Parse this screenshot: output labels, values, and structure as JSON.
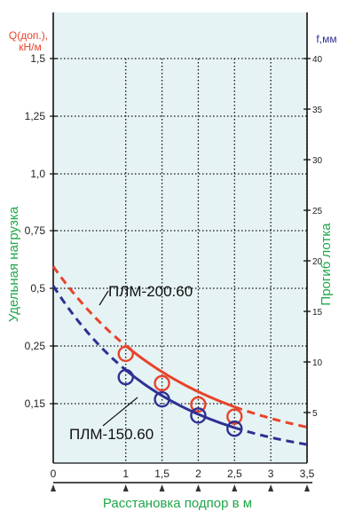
{
  "colors": {
    "plot_bg": "#e6f3f4",
    "red": "#e8432b",
    "blue": "#2d3192",
    "green": "#1fa74a",
    "axis": "#111111",
    "grid": "#111111"
  },
  "chart_data": {
    "type": "line",
    "xlabel": "Расстановка подпор в м",
    "ylabel_left": "Удельная нагрузка",
    "ylabel_right": "Прогиб лотка",
    "left_unit_line1": "Q(доп.),",
    "left_unit_line2": "кН/м",
    "right_unit": "f,мм",
    "x_ticks": [
      {
        "label": "0",
        "value": 0
      },
      {
        "label": "1",
        "value": 1
      },
      {
        "label": "1,5",
        "value": 1.5
      },
      {
        "label": "2",
        "value": 2
      },
      {
        "label": "2,5",
        "value": 2.5
      },
      {
        "label": "3",
        "value": 3
      },
      {
        "label": "3,5",
        "value": 3.5
      }
    ],
    "xlim": [
      0,
      3.5
    ],
    "left_axis": {
      "ticks": [
        {
          "label": "0,15",
          "value": 0.15
        },
        {
          "label": "0,25",
          "value": 0.25
        },
        {
          "label": "0,5",
          "value": 0.5
        },
        {
          "label": "0,75",
          "value": 0.75
        },
        {
          "label": "1,0",
          "value": 1.0
        },
        {
          "label": "1,25",
          "value": 1.25
        },
        {
          "label": "1,5",
          "value": 1.5
        }
      ]
    },
    "right_axis": {
      "ylim": [
        0,
        40
      ],
      "ticks": [
        {
          "label": "5",
          "value": 5
        },
        {
          "label": "10",
          "value": 10
        },
        {
          "label": "15",
          "value": 15
        },
        {
          "label": "20",
          "value": 20
        },
        {
          "label": "25",
          "value": 25
        },
        {
          "label": "30",
          "value": 30
        },
        {
          "label": "35",
          "value": 35
        },
        {
          "label": "40",
          "value": 40
        }
      ]
    },
    "grid": true,
    "series": [
      {
        "name": "ПЛМ-200.60",
        "color": "red",
        "points": [
          {
            "x": 1,
            "f": 10.8
          },
          {
            "x": 1.5,
            "f": 7.9
          },
          {
            "x": 2,
            "f": 5.8
          },
          {
            "x": 2.5,
            "f": 4.6
          }
        ],
        "curve_a": 18.65,
        "curve_k": 0.546,
        "curve_c": 0.8,
        "dashed_before": 1,
        "dashed_after": 2.5
      },
      {
        "name": "ПЛМ-150.60",
        "color": "blue",
        "points": [
          {
            "x": 1,
            "f": 8.5
          },
          {
            "x": 1.5,
            "f": 6.3
          },
          {
            "x": 2,
            "f": 4.7
          },
          {
            "x": 2.5,
            "f": 3.4
          }
        ],
        "curve_a": 17.53,
        "curve_k": 0.644,
        "curve_c": 0.0,
        "dashed_before": 1,
        "dashed_after": 2.5
      }
    ]
  }
}
